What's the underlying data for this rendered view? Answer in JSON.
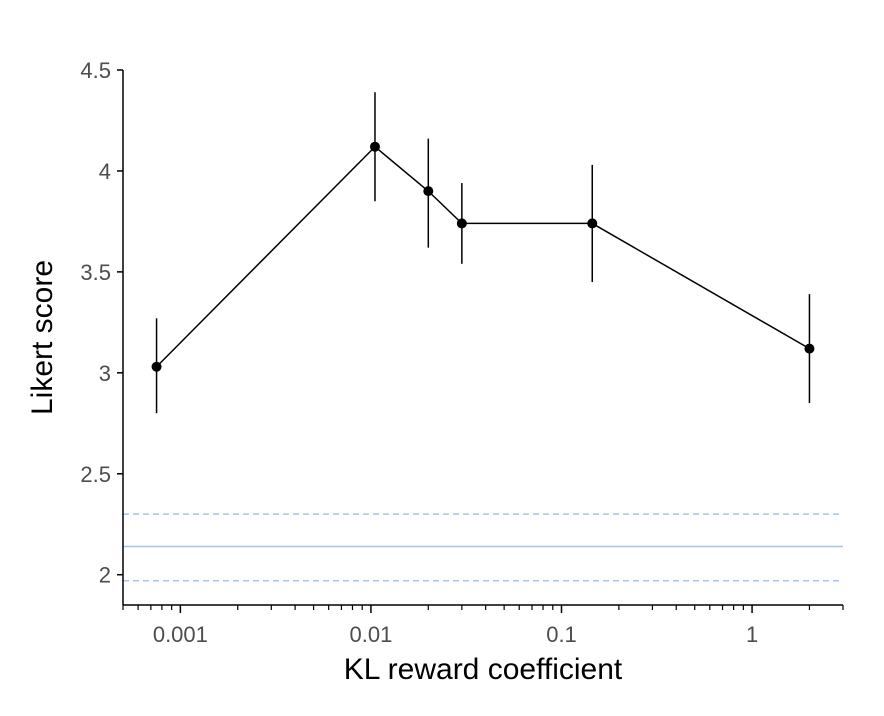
{
  "chart_data": {
    "type": "line",
    "xlabel": "KL reward coefficient",
    "ylabel": "Likert score",
    "xscale": "log",
    "xlim": [
      0.0005,
      3
    ],
    "ylim": [
      1.85,
      4.5
    ],
    "grid": false,
    "x_ticks": [
      {
        "value": 0.001,
        "label": "0.001"
      },
      {
        "value": 0.01,
        "label": "0.01"
      },
      {
        "value": 0.1,
        "label": "0.1"
      },
      {
        "value": 1,
        "label": "1"
      }
    ],
    "y_ticks": [
      {
        "value": 2,
        "label": "2"
      },
      {
        "value": 2.5,
        "label": "2.5"
      },
      {
        "value": 3,
        "label": "3"
      },
      {
        "value": 3.5,
        "label": "3.5"
      },
      {
        "value": 4,
        "label": "4"
      },
      {
        "value": 4.5,
        "label": "4.5"
      }
    ],
    "series": [
      {
        "x": [
          0.00075,
          0.0105,
          0.02,
          0.03,
          0.145,
          2.0
        ],
        "y": [
          3.03,
          4.12,
          3.9,
          3.74,
          3.74,
          3.12
        ],
        "err_low": [
          2.8,
          3.85,
          3.62,
          3.54,
          3.45,
          2.85
        ],
        "err_high": [
          3.27,
          4.39,
          4.16,
          3.94,
          4.03,
          3.39
        ],
        "color": "#000000"
      }
    ],
    "reference_lines": [
      {
        "y": 2.14,
        "style": "solid",
        "color": "#a4c2f4"
      },
      {
        "y": 2.3,
        "style": "dashed",
        "color": "#a4c2f4"
      },
      {
        "y": 1.97,
        "style": "dashed",
        "color": "#a4c2f4"
      }
    ]
  }
}
